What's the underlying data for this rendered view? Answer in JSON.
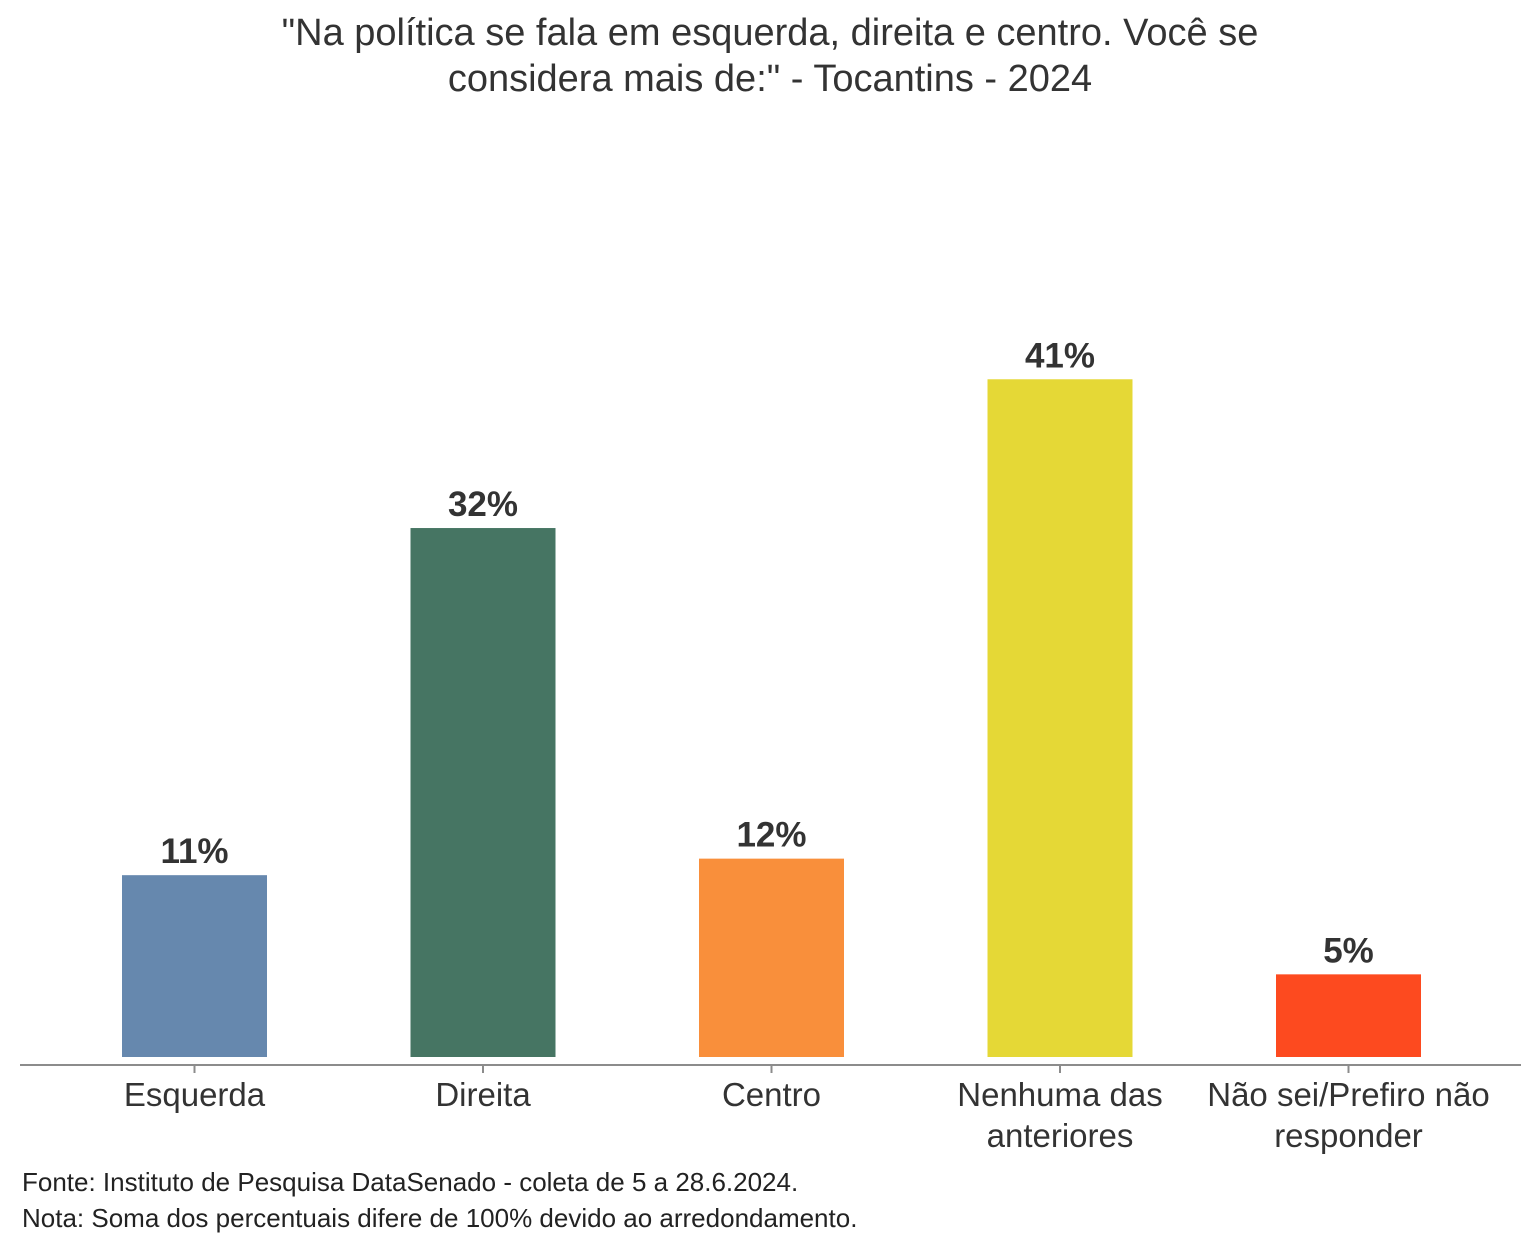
{
  "chart_data": {
    "type": "bar",
    "title_lines": [
      "\"Na política se fala em esquerda, direita e centro. Você se",
      "considera mais de:\" - Tocantins - 2024"
    ],
    "categories": [
      [
        "Esquerda"
      ],
      [
        "Direita"
      ],
      [
        "Centro"
      ],
      [
        "Nenhuma das",
        "anteriores"
      ],
      [
        "Não sei/Prefiro não",
        "responder"
      ]
    ],
    "values": [
      11,
      32,
      12,
      41,
      5
    ],
    "value_labels": [
      "11%",
      "32%",
      "12%",
      "41%",
      "5%"
    ],
    "colors": [
      "#6688AE",
      "#467563",
      "#F98F3B",
      "#E5D836",
      "#FD4A1F"
    ],
    "xlabel": "",
    "ylabel": "",
    "ylim": [
      0,
      45
    ],
    "grid": false,
    "legend": "none"
  },
  "footnotes": {
    "source": "Fonte: Instituto de Pesquisa DataSenado - coleta de 5 a 28.6.2024.",
    "note": "Nota: Soma dos percentuais difere de 100% devido ao arredondamento."
  }
}
